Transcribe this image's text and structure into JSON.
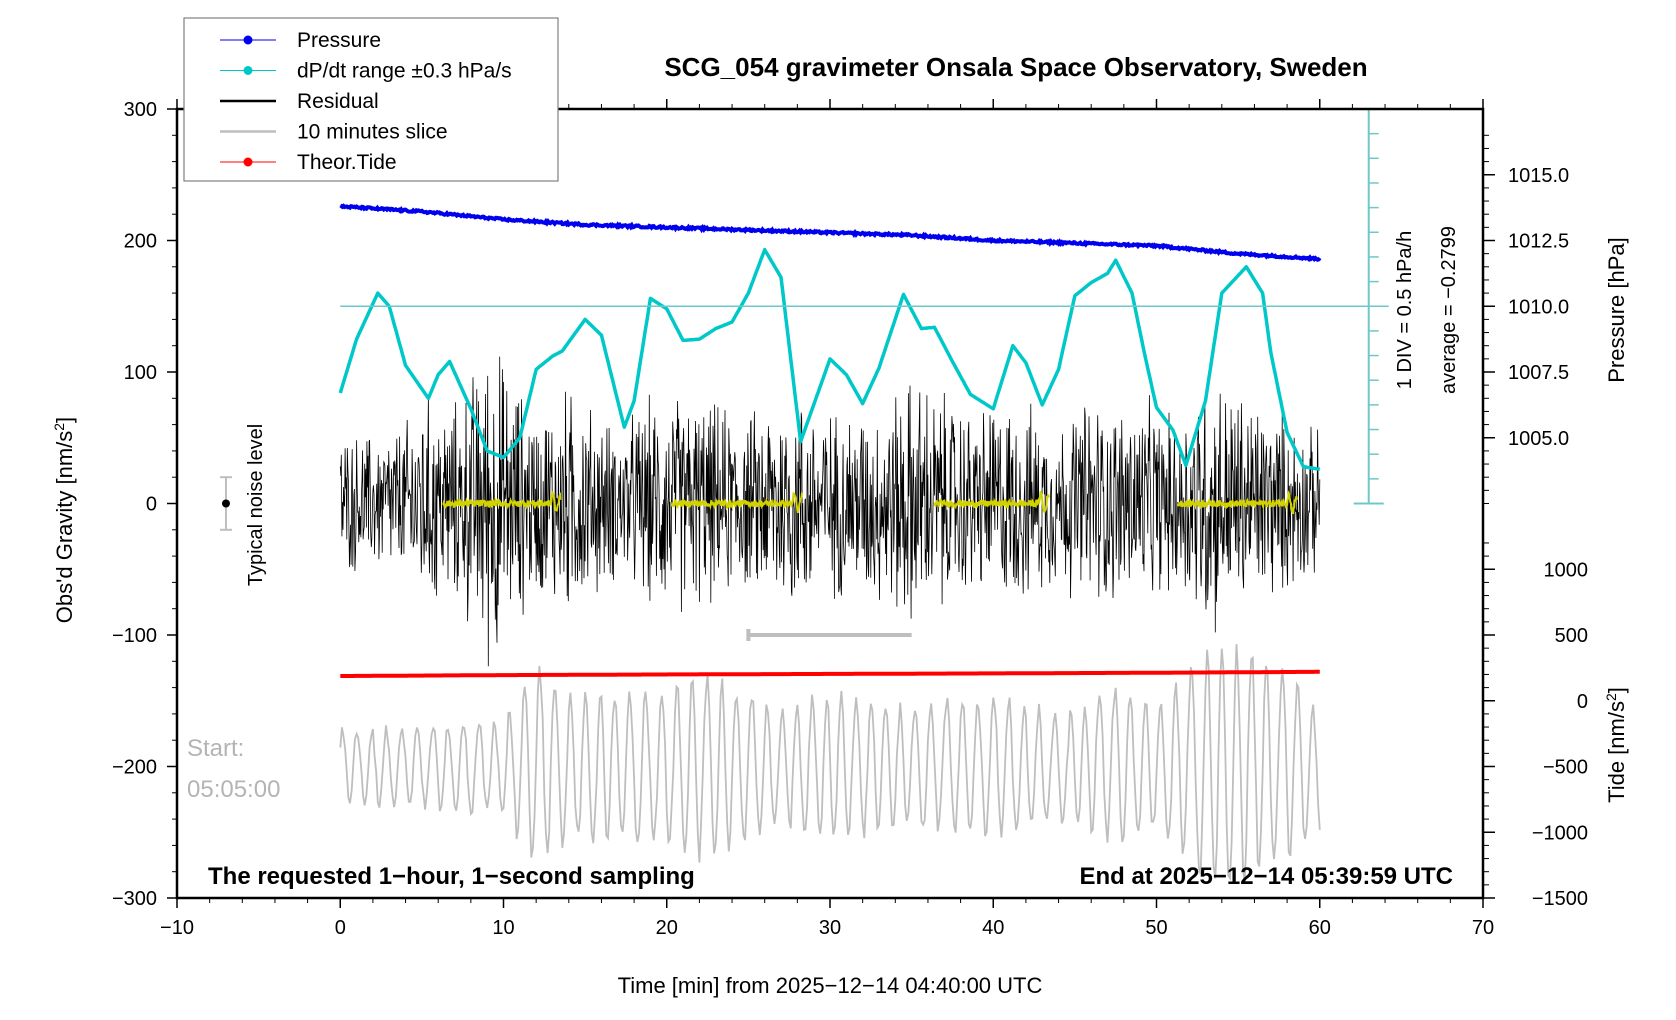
{
  "chart_data": {
    "type": "line",
    "title": "SCG_054 gravimeter Onsala Space Observatory, Sweden",
    "xlabel": "Time [min] from 2025−12−14 04:40:00 UTC",
    "ylabel_left": "Obs'd Gravity [nm/s",
    "ylabel_left_sup": "2",
    "ylabel_left_end": "]",
    "ylabel_right_pressure": "Pressure [hPa]",
    "ylabel_right_tide": "Tide [nm/s",
    "ylabel_right_tide_sup": "2",
    "ylabel_right_tide_end": "]",
    "xlim": [
      -10,
      70
    ],
    "ylim": [
      -300,
      300
    ],
    "grid": false,
    "x_ticks": [
      -10,
      0,
      10,
      20,
      30,
      40,
      50,
      60,
      70
    ],
    "x_tick_labels": [
      "−10",
      "0",
      "10",
      "20",
      "30",
      "40",
      "50",
      "60",
      "70"
    ],
    "y_ticks": [
      -300,
      -200,
      -100,
      0,
      100,
      200,
      300
    ],
    "y_tick_labels": [
      "−300",
      "−200",
      "−100",
      "0",
      "100",
      "200",
      "300"
    ],
    "pressure_axis": {
      "ticks": [
        1005.0,
        1007.5,
        1010.0,
        1012.5,
        1015.0
      ],
      "tick_labels": [
        "1005.0",
        "1007.5",
        "1010.0",
        "1012.5",
        "1015.0"
      ],
      "gravity_equiv_of_1010": 150,
      "gravity_per_hPa": 20
    },
    "tide_axis": {
      "ticks": [
        -1500,
        -1000,
        -500,
        0,
        500,
        1000
      ],
      "tick_labels": [
        "−1500",
        "−1000",
        "−500",
        "0",
        "500",
        "1000"
      ],
      "gravity_equiv_of_0": -150,
      "gravity_per_unit": 0.1
    },
    "legend": {
      "placement": "top-left",
      "entries": [
        {
          "label": "Pressure",
          "color": "#0000ee",
          "marker": true
        },
        {
          "label": "dP/dt range ±0.3 hPa/s",
          "color": "#00c8c8",
          "marker": true
        },
        {
          "label": "Residual",
          "color": "#000000",
          "marker": false
        },
        {
          "label": "10 minutes slice",
          "color": "#bebebe",
          "marker": false
        },
        {
          "label": "Theor.Tide",
          "color": "#ff0000",
          "marker": true
        }
      ]
    },
    "series": [
      {
        "name": "Pressure",
        "color": "#0000ee",
        "unit": "hPa",
        "x": [
          0,
          5,
          10,
          15,
          20,
          25,
          30,
          35,
          40,
          45,
          50,
          55,
          60
        ],
        "values": [
          1013.8,
          1013.6,
          1013.3,
          1013.1,
          1013.0,
          1012.9,
          1012.8,
          1012.7,
          1012.5,
          1012.4,
          1012.3,
          1012.0,
          1011.8
        ]
      },
      {
        "name": "dP/dt range ±0.3 hPa/s",
        "color": "#00c8c8",
        "unit": "nm/s2-equivalent",
        "x": [
          0,
          1,
          2.3,
          3,
          4,
          5.4,
          6,
          6.7,
          8,
          9,
          10,
          11,
          12,
          13,
          13.6,
          15,
          16,
          17.4,
          18,
          19,
          20,
          21,
          22,
          23,
          24,
          25,
          26,
          27,
          28.2,
          29,
          30,
          31,
          32,
          33,
          34.5,
          35.6,
          36.4,
          37.5,
          38.6,
          40,
          41.2,
          42,
          43,
          44,
          45,
          46,
          47,
          47.5,
          48.5,
          49.3,
          50,
          51,
          51.8,
          53,
          54,
          55.5,
          56.5,
          57,
          58,
          59,
          60
        ],
        "values": [
          84,
          125,
          160,
          150,
          105,
          80,
          98,
          108,
          72,
          40,
          35,
          50,
          102,
          112,
          116,
          140,
          128,
          58,
          78,
          156,
          148,
          124,
          125,
          133,
          138,
          160,
          193,
          172,
          47,
          75,
          110,
          98,
          76,
          103,
          159,
          133,
          134,
          108,
          83,
          72,
          120,
          107,
          75,
          102,
          158,
          168,
          175,
          185,
          160,
          112,
          73,
          56,
          29,
          78,
          160,
          180,
          160,
          115,
          54,
          28,
          26
        ]
      },
      {
        "name": "Residual",
        "color": "#000000",
        "unit": "nm/s2",
        "note": "1-second sampled noise, amplitude envelope per minute",
        "x": [
          0,
          2,
          4,
          5,
          7,
          8,
          9.5,
          10,
          12,
          14,
          17,
          19,
          21,
          22,
          25,
          27,
          28,
          30,
          33,
          35,
          37,
          39,
          40,
          42,
          44,
          46,
          47,
          49,
          51,
          53,
          55,
          57,
          60
        ],
        "envelope": [
          60,
          60,
          70,
          95,
          85,
          110,
          150,
          120,
          80,
          100,
          65,
          90,
          95,
          90,
          75,
          100,
          95,
          80,
          85,
          110,
          95,
          80,
          90,
          85,
          70,
          95,
          85,
          90,
          75,
          115,
          100,
          85,
          60
        ]
      },
      {
        "name": "10 minutes slice",
        "color": "#bebebe",
        "unit": "nm/s2",
        "note": "zoomed slice starting 05:05:00, plotted around -200 nm/s2 baseline",
        "baseline": -200,
        "amplitude_range": [
          -300,
          -20
        ]
      },
      {
        "name": "Theor.Tide",
        "color": "#ff0000",
        "unit": "nm/s2",
        "x": [
          0,
          10,
          20,
          30,
          40,
          50,
          60
        ],
        "values": [
          188,
          195,
          200,
          204,
          208,
          213,
          220
        ]
      },
      {
        "name": "Yellow detail trace",
        "color": "#d2d200",
        "segments": [
          [
            6.3,
            13.5
          ],
          [
            20.3,
            28.3
          ],
          [
            36.4,
            43.4
          ],
          [
            51.3,
            58.6
          ]
        ],
        "baseline": 0
      }
    ],
    "slice_marker": {
      "x_start": 25,
      "x_end": 35,
      "y": -100,
      "color": "#bebebe"
    },
    "dpdt_axis": {
      "x": 63,
      "y_min": 0,
      "y_max": 300,
      "reference_line_y": 150,
      "color": "#6ec8c8"
    },
    "annotations": {
      "dpdt_div": "1 DIV = 0.5 hPa/h",
      "dpdt_average": "average = −0.2799",
      "noise_label": "Typical noise level",
      "noise_center": 0,
      "noise_halfwidth": 20,
      "start_label": "Start:",
      "start_time": "05:05:00",
      "bottom_left": "The requested 1−hour, 1−second sampling",
      "bottom_right": "End at 2025−12−14 05:39:59 UTC"
    }
  }
}
